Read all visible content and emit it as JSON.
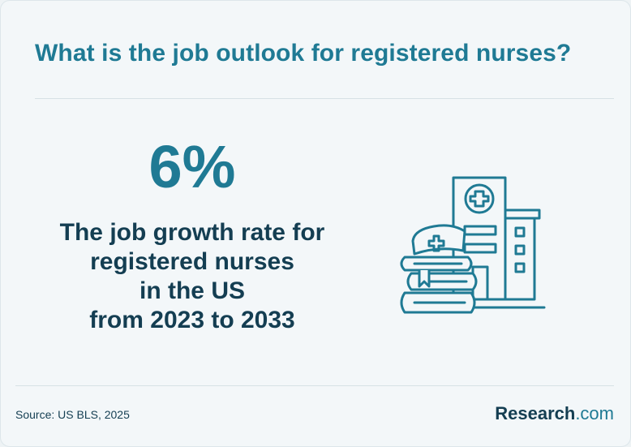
{
  "header": {
    "title": "What is the job outlook for registered nurses?"
  },
  "stat": {
    "value": "6%",
    "description_lines": [
      "The job growth rate for",
      "registered nurses",
      "in the US",
      "from 2023 to 2033"
    ]
  },
  "illustration": {
    "icon": "hospital-nurse-books-icon"
  },
  "footer": {
    "source": "Source: US BLS, 2025",
    "brand_name": "Research",
    "brand_suffix": ".com"
  },
  "colors": {
    "accent": "#1f7a94",
    "text_dark": "#143e52",
    "background": "#f3f7f9"
  }
}
